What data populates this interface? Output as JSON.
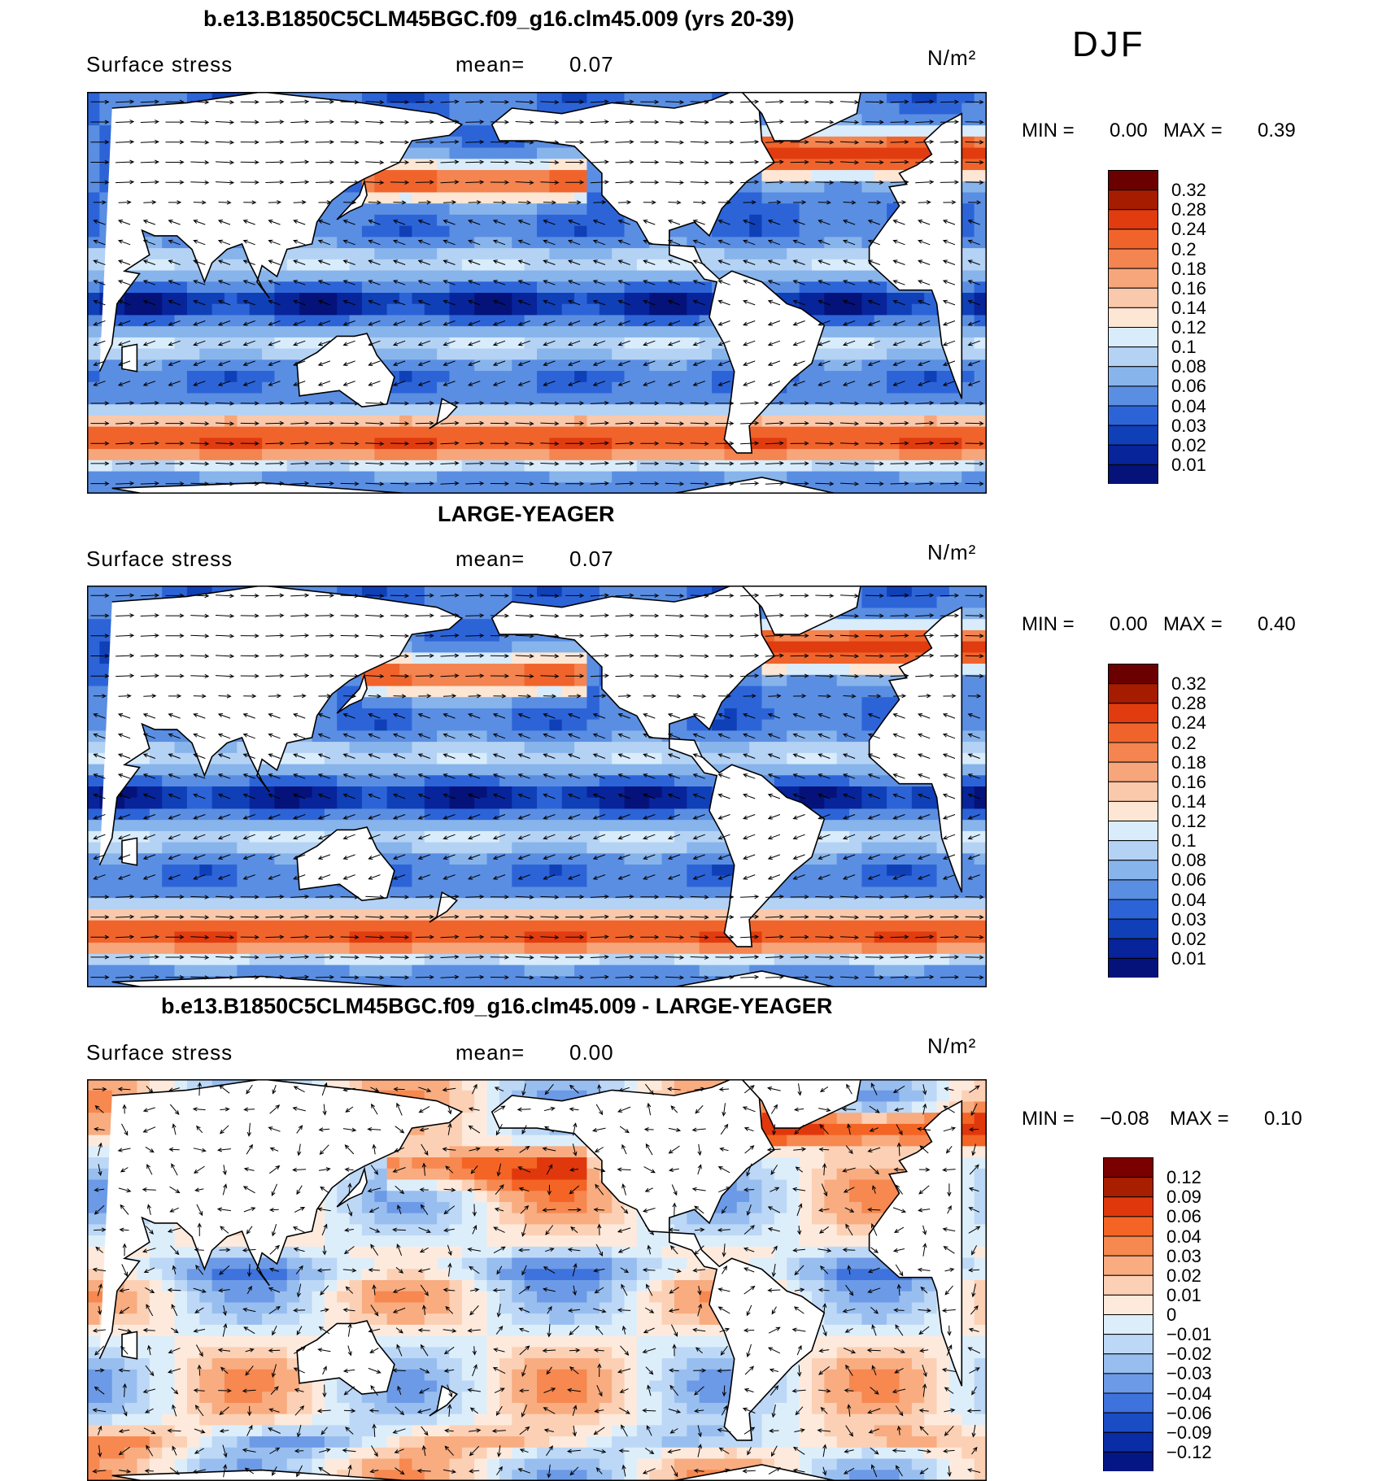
{
  "season": "DJF",
  "panels": [
    {
      "title": "b.e13.B1850C5CLM45BGC.f09_g16.clm45.009 (yrs 20-39)",
      "field": "Surface stress",
      "mean_label": "mean=",
      "mean": "0.07",
      "units": "N/m²",
      "min_label": "MIN =",
      "min": "0.00",
      "max_label": "MAX =",
      "max": "0.39",
      "colorbar": [
        "0.32",
        "0.28",
        "0.24",
        "0.2",
        "0.18",
        "0.16",
        "0.14",
        "0.12",
        "0.1",
        "0.08",
        "0.06",
        "0.04",
        "0.03",
        "0.02",
        "0.01"
      ]
    },
    {
      "title": "LARGE-YEAGER",
      "field": "Surface stress",
      "mean_label": "mean=",
      "mean": "0.07",
      "units": "N/m²",
      "min_label": "MIN =",
      "min": "0.00",
      "max_label": "MAX =",
      "max": "0.40",
      "colorbar": [
        "0.32",
        "0.28",
        "0.24",
        "0.2",
        "0.18",
        "0.16",
        "0.14",
        "0.12",
        "0.1",
        "0.08",
        "0.06",
        "0.04",
        "0.03",
        "0.02",
        "0.01"
      ]
    },
    {
      "title": "b.e13.B1850C5CLM45BGC.f09_g16.clm45.009 - LARGE-YEAGER",
      "field": "Surface stress",
      "mean_label": "mean=",
      "mean": "0.00",
      "units": "N/m²",
      "min_label": "MIN =",
      "min": "−0.08",
      "max_label": "MAX =",
      "max": "0.10",
      "colorbar": [
        "0.12",
        "0.09",
        "0.06",
        "0.04",
        "0.03",
        "0.02",
        "0.01",
        "0",
        "−0.01",
        "−0.02",
        "−0.03",
        "−0.04",
        "−0.06",
        "−0.09",
        "−0.12"
      ]
    }
  ],
  "colors": {
    "abs_scale": [
      "#6b0000",
      "#a61c00",
      "#e03c10",
      "#f0642c",
      "#f48450",
      "#f6a67a",
      "#fac8aa",
      "#fde6d4",
      "#d8ecfb",
      "#b4d2f4",
      "#88b4ec",
      "#5a8ee2",
      "#2c64d8",
      "#1040b8",
      "#08249a",
      "#04127a"
    ],
    "diff_scale": [
      "#7a0000",
      "#a81e00",
      "#e0380c",
      "#f46424",
      "#f68850",
      "#f8ac80",
      "#fcd0b4",
      "#feeadc",
      "#ddeefb",
      "#bcd8f6",
      "#98bef0",
      "#6c9ae6",
      "#3e72dc",
      "#1a4cc4",
      "#0a2ca4",
      "#041684"
    ],
    "land": "#ffffff",
    "coast": "#000000"
  }
}
